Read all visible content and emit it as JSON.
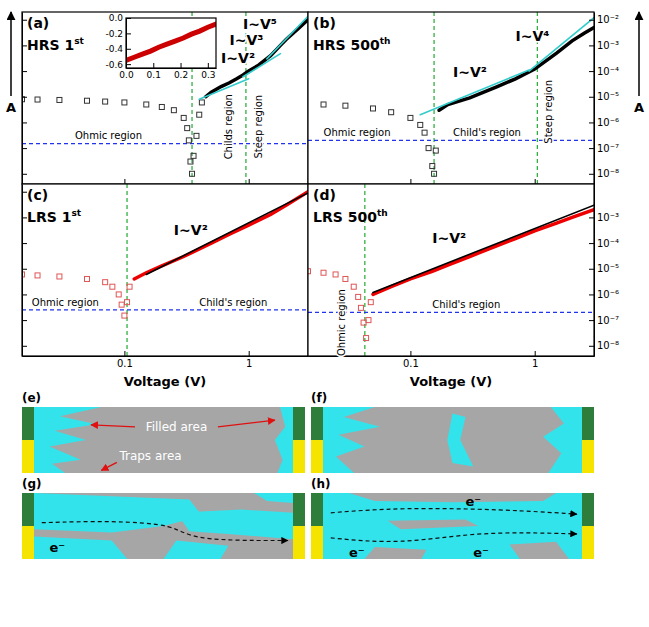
{
  "chart_data": [
    {
      "type": "line",
      "log": true,
      "panel": "(a)",
      "title": "HRS 1st",
      "y_label": "A",
      "xlim": [
        0.015,
        3
      ],
      "ylim": [
        4e-09,
        0.02
      ],
      "xticks": [
        0.1,
        1
      ],
      "yticks": [
        {
          "value": 1e-08,
          "label": "10⁻⁸"
        },
        {
          "value": 1e-07,
          "label": "10⁻⁷"
        },
        {
          "value": 1e-06,
          "label": "10⁻⁶"
        },
        {
          "value": 1e-05,
          "label": "10⁻⁵"
        },
        {
          "value": 0.0001,
          "label": "10⁻⁴"
        },
        {
          "value": 0.001,
          "label": "10⁻³"
        },
        {
          "value": 0.01,
          "label": "10⁻²"
        }
      ],
      "tick_labels": false,
      "series": [
        {
          "type": "scatter",
          "marker": "square",
          "color": "#333333",
          "x": [
            0.015,
            0.02,
            0.03,
            0.05,
            0.07,
            0.1,
            0.15,
            0.2,
            0.25,
            0.3,
            0.32,
            0.33,
            0.34,
            0.35,
            0.36,
            0.38,
            0.4,
            0.42
          ],
          "values": [
            8e-06,
            7.8e-06,
            7.5e-06,
            7e-06,
            6.5e-06,
            6e-06,
            5e-06,
            4e-06,
            3e-06,
            1.5e-06,
            6e-07,
            2e-07,
            3e-08,
            1e-08,
            5e-08,
            3e-07,
            2e-06,
            6e-06
          ]
        },
        {
          "type": "line",
          "color": "#000000",
          "x": [
            0.45,
            0.5,
            0.6,
            0.7,
            0.8,
            0.9,
            1.0,
            1.2,
            1.5,
            1.8,
            2.0,
            2.5,
            3.0
          ],
          "values": [
            1e-05,
            1.5e-05,
            2.5e-05,
            3.5e-05,
            5e-05,
            7e-05,
            0.0001,
            0.00017,
            0.0004,
            0.001,
            0.0017,
            0.0045,
            0.01
          ]
        },
        {
          "type": "line",
          "color": "#33cccc",
          "x": [
            0.4,
            1.0
          ],
          "values": [
            8e-06,
            5e-05
          ]
        },
        {
          "type": "line",
          "color": "#33cccc",
          "x": [
            0.9,
            1.8
          ],
          "values": [
            6e-05,
            0.00048
          ]
        },
        {
          "type": "line",
          "color": "#33cccc",
          "x": [
            1.4,
            3.0
          ],
          "values": [
            0.0003,
            0.0135
          ]
        }
      ],
      "reference_lines": {
        "x": [
          0.35,
          0.95
        ],
        "y": [
          1.5e-07
        ]
      },
      "annotations": [
        {
          "text": "I~V²",
          "x": 0.6,
          "y": 0.0002
        },
        {
          "text": "I~V³",
          "x": 0.7,
          "y": 0.001
        },
        {
          "text": "I~V⁵",
          "x": 0.9,
          "y": 0.0045
        },
        {
          "text": "Ohmic region",
          "x": 0.04,
          "y": 2.2e-07
        },
        {
          "text": "Childs region",
          "x": 0.7,
          "y": 6.8e-07
        },
        {
          "text": "Steep region",
          "x": 1.2,
          "y": 6.8e-07
        }
      ]
    },
    {
      "type": "line",
      "log": true,
      "panel": "(b)",
      "title": "HRS 500th",
      "y_label": "A",
      "xlim": [
        0.015,
        3
      ],
      "ylim": [
        4e-09,
        0.02
      ],
      "xticks": [
        0.1,
        1
      ],
      "yticks": [
        {
          "value": 1e-08,
          "label": "10⁻⁸"
        },
        {
          "value": 1e-07,
          "label": "10⁻⁷"
        },
        {
          "value": 1e-06,
          "label": "10⁻⁶"
        },
        {
          "value": 1e-05,
          "label": "10⁻⁵"
        },
        {
          "value": 0.0001,
          "label": "10⁻⁴"
        },
        {
          "value": 0.001,
          "label": "10⁻³"
        },
        {
          "value": 0.01,
          "label": "10⁻²"
        }
      ],
      "tick_labels": "y",
      "series": [
        {
          "type": "scatter",
          "marker": "square",
          "color": "#333333",
          "x": [
            0.02,
            0.03,
            0.05,
            0.07,
            0.1,
            0.12,
            0.13,
            0.14,
            0.15,
            0.155,
            0.16
          ],
          "values": [
            5e-06,
            4.5e-06,
            3.5e-06,
            2.5e-06,
            1.5e-06,
            8e-07,
            4e-07,
            1e-07,
            2e-08,
            1e-08,
            8e-08
          ]
        },
        {
          "type": "line",
          "color": "#000000",
          "x": [
            0.17,
            0.2,
            0.3,
            0.5,
            0.7,
            1.0,
            1.5,
            2.0,
            2.5,
            3.0
          ],
          "values": [
            3e-06,
            5e-06,
            9e-06,
            2.5e-05,
            5e-05,
            0.00012,
            0.0005,
            0.0015,
            0.003,
            0.005
          ]
        },
        {
          "type": "line",
          "color": "#33cccc",
          "x": [
            0.12,
            0.9
          ],
          "values": [
            2e-06,
            0.00011
          ]
        },
        {
          "type": "line",
          "color": "#33cccc",
          "x": [
            0.9,
            3.0
          ],
          "values": [
            0.0001,
            0.012
          ]
        }
      ],
      "reference_lines": {
        "x": [
          0.155,
          1.05
        ],
        "y": [
          2e-07
        ]
      },
      "annotations": [
        {
          "text": "I~V²",
          "x": 0.22,
          "y": 6e-05
        },
        {
          "text": "I~V⁴",
          "x": 0.7,
          "y": 0.0015
        },
        {
          "text": "Ohmic region",
          "x": 0.02,
          "y": 3e-07
        },
        {
          "text": "Child's region",
          "x": 0.22,
          "y": 3e-07
        },
        {
          "text": "Steep region",
          "x": 1.3,
          "y": 2.6e-06
        }
      ]
    },
    {
      "type": "line",
      "log": true,
      "panel": "(c)",
      "title": "LRS 1st",
      "x_label": "Voltage (V)",
      "xlim": [
        0.015,
        3
      ],
      "ylim": [
        4e-09,
        0.02
      ],
      "xticks": [
        0.1,
        1
      ],
      "yticks": [
        {
          "value": 1e-08,
          "label": "10⁻⁸"
        },
        {
          "value": 1e-07,
          "label": "10⁻⁷"
        },
        {
          "value": 1e-06,
          "label": "10⁻⁶"
        },
        {
          "value": 1e-05,
          "label": "10⁻⁵"
        },
        {
          "value": 0.0001,
          "label": "10⁻⁴"
        },
        {
          "value": 0.001,
          "label": "10⁻³"
        },
        {
          "value": 0.01,
          "label": "10⁻²"
        }
      ],
      "tick_labels": "x",
      "series": [
        {
          "type": "scatter",
          "marker": "square",
          "color": "#e05555",
          "x": [
            0.015,
            0.02,
            0.03,
            0.05,
            0.07,
            0.08,
            0.09,
            0.095,
            0.1,
            0.105,
            0.11
          ],
          "values": [
            6e-06,
            5.5e-06,
            5e-06,
            4e-06,
            3e-06,
            2e-06,
            1e-06,
            4e-07,
            1.5e-07,
            5e-07,
            2e-06
          ]
        },
        {
          "type": "line",
          "color": "#ee0000",
          "x": [
            0.12,
            0.15,
            0.2,
            0.3,
            0.5,
            0.7,
            1.0,
            1.5,
            2.0,
            3.0
          ],
          "values": [
            4e-06,
            7e-06,
            1.3e-05,
            3e-05,
            0.0001,
            0.00022,
            0.0005,
            0.0013,
            0.003,
            0.01
          ]
        },
        {
          "type": "line",
          "color": "#000000",
          "x": [
            0.15,
            3.0
          ],
          "values": [
            6e-06,
            0.009
          ]
        }
      ],
      "reference_lines": {
        "x": [
          0.105
        ],
        "y": [
          2.5e-07
        ]
      },
      "annotations": [
        {
          "text": "I~V²",
          "x": 0.25,
          "y": 0.0002
        },
        {
          "text": "Ohmic region",
          "x": 0.018,
          "y": 3.5e-07
        },
        {
          "text": "Child's region",
          "x": 0.4,
          "y": 3.5e-07
        }
      ]
    },
    {
      "type": "line",
      "log": true,
      "panel": "(d)",
      "title": "LRS 500th",
      "x_label": "Voltage (V)",
      "xlim": [
        0.015,
        3
      ],
      "ylim": [
        4e-09,
        0.02
      ],
      "xticks": [
        0.1,
        1
      ],
      "yticks": [
        {
          "value": 1e-08,
          "label": "10⁻⁸"
        },
        {
          "value": 1e-07,
          "label": "10⁻⁷"
        },
        {
          "value": 1e-06,
          "label": "10⁻⁶"
        },
        {
          "value": 1e-05,
          "label": "10⁻⁵"
        },
        {
          "value": 0.0001,
          "label": "10⁻⁴"
        },
        {
          "value": 0.001,
          "label": "10⁻³"
        }
      ],
      "tick_labels": true,
      "series": [
        {
          "type": "scatter",
          "marker": "square",
          "color": "#e05555",
          "x": [
            0.015,
            0.02,
            0.025,
            0.03,
            0.035,
            0.038,
            0.04,
            0.042,
            0.044,
            0.046,
            0.048
          ],
          "values": [
            8e-06,
            7e-06,
            6e-06,
            4e-06,
            2e-06,
            8e-07,
            3e-07,
            8e-08,
            2e-08,
            1e-07,
            5e-07
          ]
        },
        {
          "type": "line",
          "color": "#ee0000",
          "x": [
            0.05,
            0.07,
            0.1,
            0.15,
            0.2,
            0.3,
            0.5,
            0.7,
            1.0,
            1.5,
            2.0,
            3.0
          ],
          "values": [
            1e-06,
            2e-06,
            4e-06,
            8e-06,
            1.4e-05,
            3e-05,
            8e-05,
            0.00015,
            0.0003,
            0.0006,
            0.001,
            0.002
          ]
        },
        {
          "type": "line",
          "color": "#000000",
          "x": [
            0.05,
            3.0
          ],
          "values": [
            1.2e-06,
            0.003
          ]
        }
      ],
      "reference_lines": {
        "x": [
          0.043
        ],
        "y": [
          2e-07
        ]
      },
      "annotations": [
        {
          "text": "I~V²",
          "x": 0.15,
          "y": 0.0001
        },
        {
          "text": "Ohmic region",
          "x": 0.028,
          "y": 8e-08
        },
        {
          "text": "Child's region",
          "x": 0.15,
          "y": 3e-07
        }
      ]
    },
    {
      "type": "line",
      "xlim": [
        0,
        0.33
      ],
      "ylim": [
        -0.65,
        0
      ],
      "xticks": [
        {
          "value": 0,
          "label": "0.0"
        },
        0.1,
        0.2,
        0.3
      ],
      "yticks": [
        -0.6,
        -0.4,
        -0.2,
        {
          "value": 0,
          "label": "0.0"
        }
      ],
      "series": [
        {
          "type": "line",
          "color": "#cc0000",
          "x": [
            0,
            0.03,
            0.06,
            0.09,
            0.12,
            0.15,
            0.18,
            0.21,
            0.24,
            0.27,
            0.3,
            0.33
          ],
          "values": [
            -0.55,
            -0.51,
            -0.47,
            -0.43,
            -0.38,
            -0.34,
            -0.3,
            -0.26,
            -0.21,
            -0.17,
            -0.12,
            -0.08
          ]
        }
      ]
    }
  ],
  "diagrams": [
    {
      "label": "(e)",
      "texts": [
        "Filled area",
        "Traps area"
      ]
    },
    {
      "label": "(f)"
    },
    {
      "label": "(g)",
      "electrons": [
        "e⁻"
      ]
    },
    {
      "label": "(h)",
      "electrons": [
        "e⁻",
        "e⁻",
        "e⁻"
      ]
    }
  ]
}
